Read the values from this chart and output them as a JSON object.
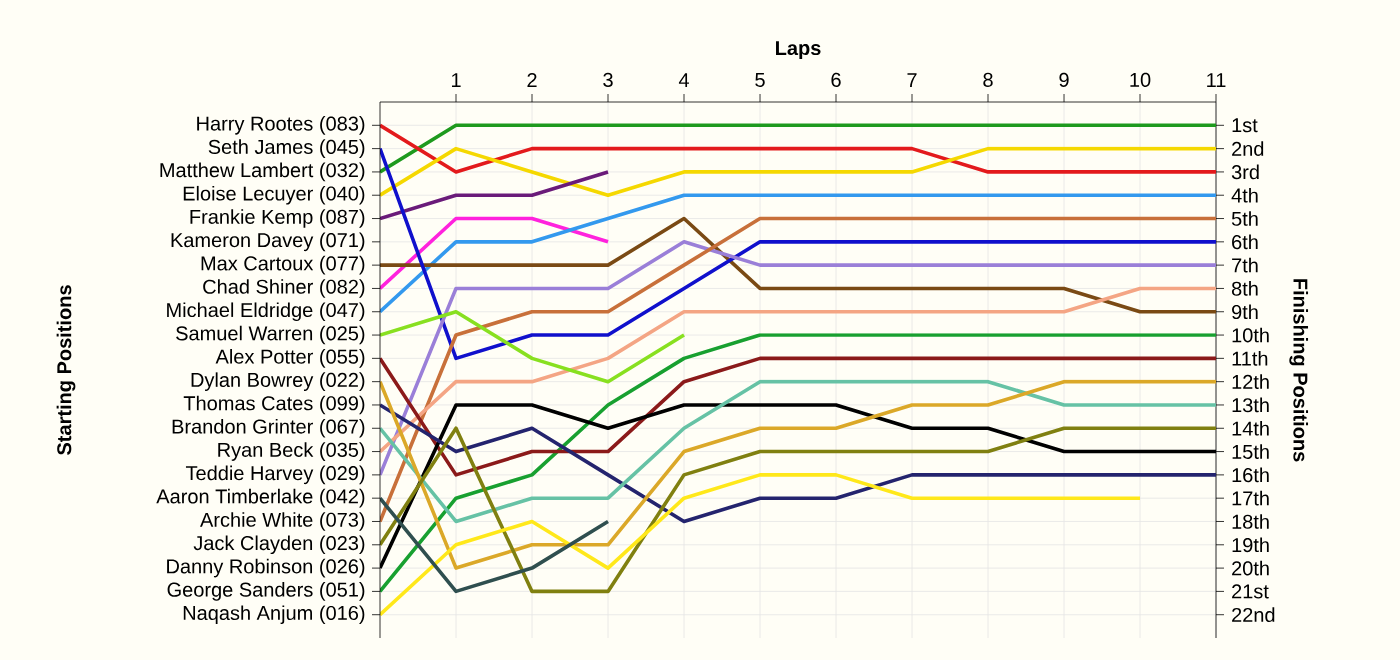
{
  "chart_data": {
    "type": "line",
    "xlabel": "Laps",
    "ylabel": "Finishing Positions",
    "x": [
      0,
      1,
      2,
      3,
      4,
      5,
      6,
      7,
      8,
      9,
      10,
      11
    ],
    "xlim": [
      0,
      11
    ],
    "xticks": [
      1,
      2,
      3,
      4,
      5,
      6,
      7,
      8,
      9,
      10,
      11
    ],
    "ylim": [
      23,
      0
    ],
    "annotations": [
      "Harry Rootes (083)",
      "Seth James (045)",
      "Matthew Lambert (032)",
      "Eloise Lecuyer (040)",
      "Frankie Kemp (087)",
      "Kameron Davey (071)",
      "Max Cartoux (077)",
      "Chad Shiner (082)",
      "Michael Eldridge (047)",
      "Samuel Warren (025)",
      "Alex Potter (055)",
      "Dylan Bowrey (022)",
      "Thomas Cates (099)",
      "Brandon Grinter (067)",
      "Ryan Beck (035)",
      "Teddie Harvey (029)",
      "Aaron Timberlake (042)",
      "Archie White (073)",
      "Jack Clayden (023)",
      "Danny Robinson (026)",
      "George Sanders (051)",
      "Naqash Anjum (016)",
      "Starting Positions"
    ],
    "yticks": [
      {
        "value": 1,
        "label": "1st"
      },
      {
        "value": 2,
        "label": "2nd"
      },
      {
        "value": 3,
        "label": "3rd"
      },
      {
        "value": 4,
        "label": "4th"
      },
      {
        "value": 5,
        "label": "5th"
      },
      {
        "value": 6,
        "label": "6th"
      },
      {
        "value": 7,
        "label": "7th"
      },
      {
        "value": 8,
        "label": "8th"
      },
      {
        "value": 9,
        "label": "9th"
      },
      {
        "value": 10,
        "label": "10th"
      },
      {
        "value": 11,
        "label": "11th"
      },
      {
        "value": 12,
        "label": "12th"
      },
      {
        "value": 13,
        "label": "13th"
      },
      {
        "value": 14,
        "label": "14th"
      },
      {
        "value": 15,
        "label": "15th"
      },
      {
        "value": 16,
        "label": "16th"
      },
      {
        "value": 17,
        "label": "17th"
      },
      {
        "value": 18,
        "label": "18th"
      },
      {
        "value": 19,
        "label": "19th"
      },
      {
        "value": 20,
        "label": "20th"
      },
      {
        "value": 21,
        "label": "21st"
      },
      {
        "value": 22,
        "label": "22nd"
      }
    ],
    "grid": true,
    "marker": "none",
    "line_style": "solid",
    "series": [
      {
        "color": "#1e9a1e",
        "values": [
          3,
          1,
          1,
          1,
          1,
          1,
          1,
          1,
          1,
          1,
          1,
          1
        ]
      },
      {
        "color": "#e31a1c",
        "values": [
          1,
          3,
          2,
          2,
          2,
          2,
          2,
          2,
          3,
          3,
          3,
          3
        ]
      },
      {
        "color": "#f5d800",
        "values": [
          4,
          2,
          3,
          4,
          3,
          3,
          3,
          3,
          2,
          2,
          2,
          2
        ]
      },
      {
        "color": "#6a1b7a",
        "values": [
          5,
          4,
          4,
          3,
          null,
          null,
          null,
          null,
          null,
          null,
          null,
          null
        ]
      },
      {
        "color": "#ff22dd",
        "values": [
          8,
          5,
          5,
          6,
          null,
          null,
          null,
          null,
          null,
          null,
          null,
          null
        ]
      },
      {
        "color": "#3399ee",
        "values": [
          9,
          6,
          6,
          5,
          4,
          4,
          4,
          4,
          4,
          4,
          4,
          4
        ]
      },
      {
        "color": "#7a4a14",
        "values": [
          7,
          7,
          7,
          7,
          5,
          8,
          8,
          8,
          8,
          8,
          9,
          9
        ]
      },
      {
        "color": "#1010cc",
        "values": [
          2,
          11,
          10,
          10,
          8,
          6,
          6,
          6,
          6,
          6,
          6,
          6
        ]
      },
      {
        "color": "#9a7fd8",
        "values": [
          16,
          8,
          8,
          8,
          6,
          7,
          7,
          7,
          7,
          7,
          7,
          7
        ]
      },
      {
        "color": "#c8703a",
        "values": [
          18,
          10,
          9,
          9,
          7,
          5,
          5,
          5,
          5,
          5,
          5,
          5
        ]
      },
      {
        "color": "#f4a584",
        "values": [
          15,
          12,
          12,
          11,
          9,
          9,
          9,
          9,
          9,
          9,
          8,
          8
        ]
      },
      {
        "color": "#88e020",
        "values": [
          10,
          9,
          11,
          12,
          10,
          null,
          null,
          null,
          null,
          null,
          null,
          null
        ]
      },
      {
        "color": "#18a030",
        "values": [
          21,
          17,
          16,
          13,
          11,
          10,
          10,
          10,
          10,
          10,
          10,
          10
        ]
      },
      {
        "color": "#8b1a1a",
        "values": [
          11,
          16,
          15,
          15,
          12,
          11,
          11,
          11,
          11,
          11,
          11,
          11
        ]
      },
      {
        "color": "#000000",
        "values": [
          20,
          13,
          13,
          14,
          13,
          13,
          13,
          14,
          14,
          15,
          15,
          15
        ]
      },
      {
        "color": "#24246e",
        "values": [
          13,
          15,
          14,
          16,
          18,
          17,
          17,
          16,
          16,
          16,
          16,
          16
        ]
      },
      {
        "color": "#66c2a5",
        "values": [
          14,
          18,
          17,
          17,
          14,
          12,
          12,
          12,
          12,
          13,
          13,
          13
        ]
      },
      {
        "color": "#dba828",
        "values": [
          12,
          20,
          19,
          19,
          15,
          14,
          14,
          13,
          13,
          12,
          12,
          12
        ]
      },
      {
        "color": "#808010",
        "values": [
          19,
          14,
          21,
          21,
          16,
          15,
          15,
          15,
          15,
          14,
          14,
          14
        ]
      },
      {
        "color": "#ffe81a",
        "values": [
          22,
          19,
          18,
          20,
          17,
          16,
          16,
          17,
          17,
          17,
          17,
          null
        ]
      },
      {
        "color": "#2f4f4f",
        "values": [
          17,
          21,
          20,
          18,
          null,
          null,
          null,
          null,
          null,
          null,
          null,
          null
        ]
      }
    ]
  }
}
